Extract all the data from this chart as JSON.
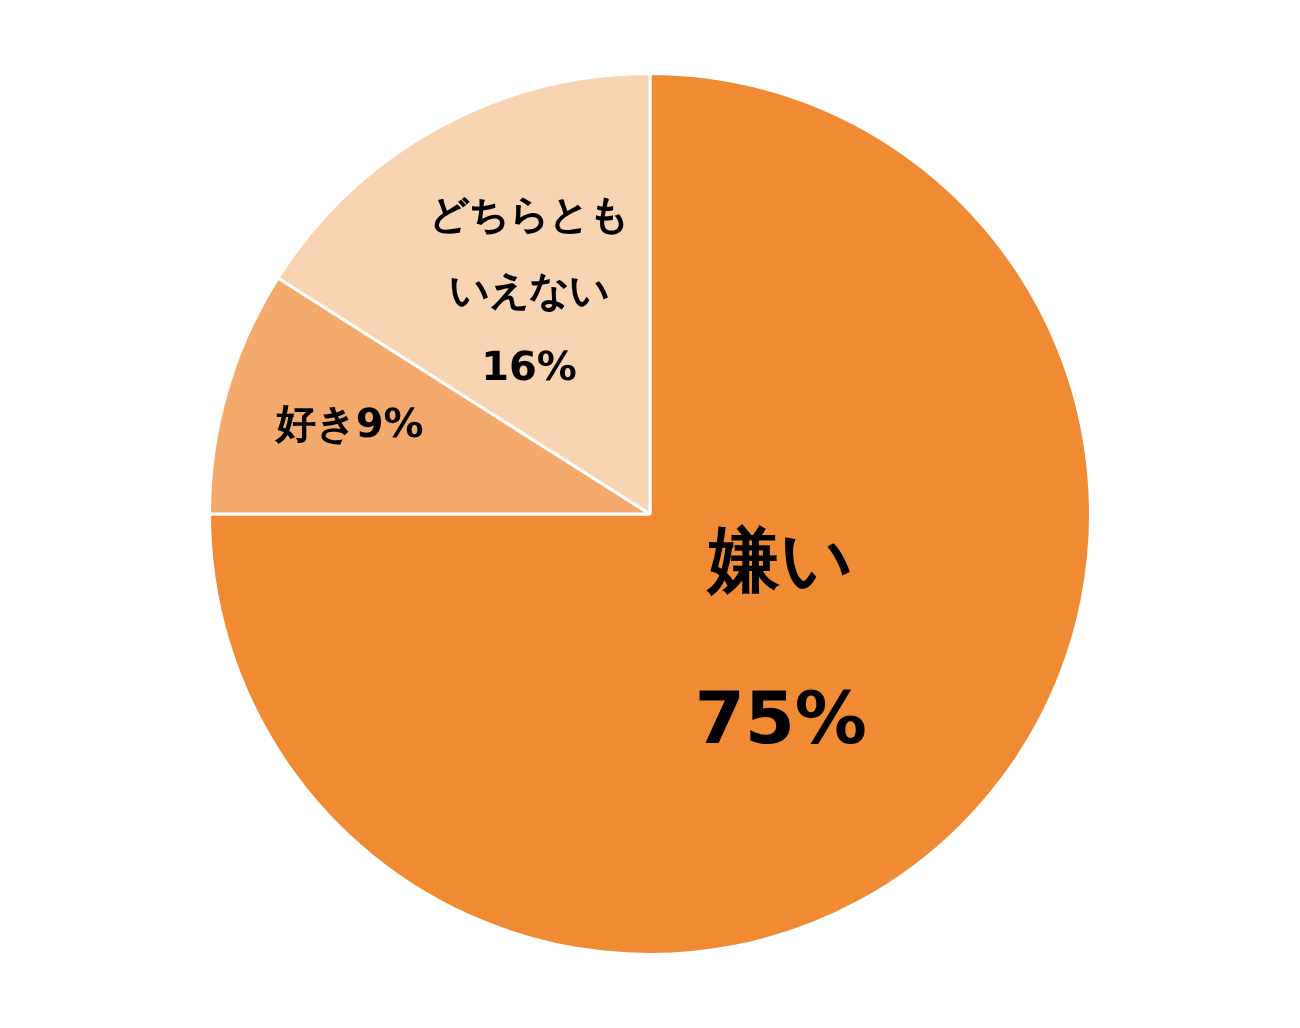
{
  "chart_data": {
    "type": "pie",
    "categories": [
      "嫌い",
      "好き",
      "どちらともいえない"
    ],
    "values": [
      75,
      9,
      16
    ],
    "colors": [
      "#f08a33",
      "#f4aa6c",
      "#f9d4b2"
    ],
    "value_labels": [
      "75%",
      "9%",
      "16%"
    ],
    "legend": false
  }
}
